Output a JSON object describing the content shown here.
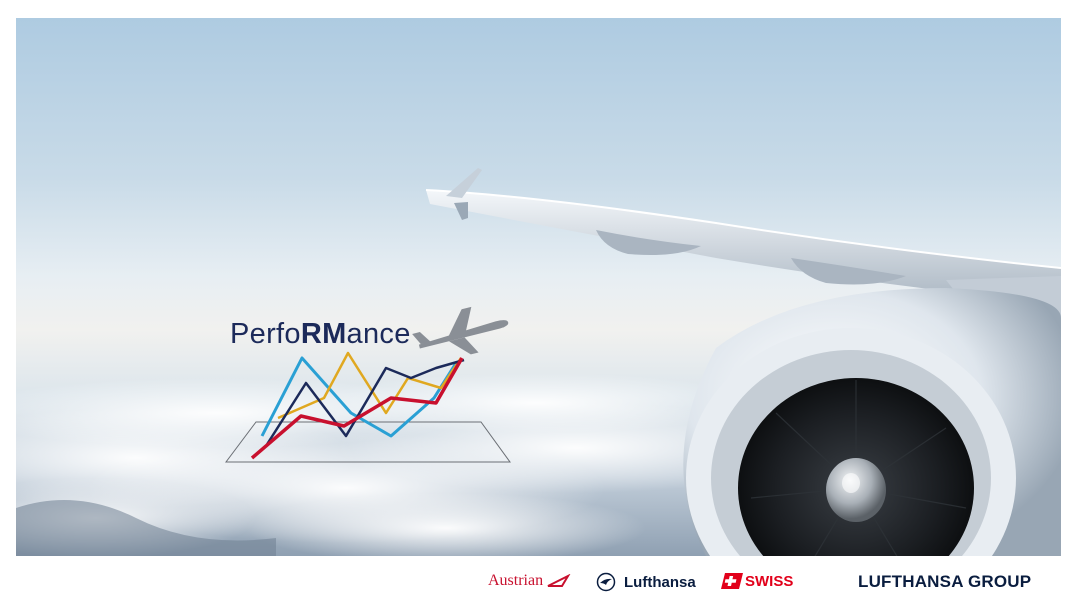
{
  "hero": {
    "logo": {
      "prefix": "Perfo",
      "highlight": "RM",
      "suffix": "ance"
    }
  },
  "footer": {
    "brands": {
      "austrian": "Austrian",
      "lufthansa": "Lufthansa",
      "swiss": "SWISS",
      "group": "LUFTHANSA GROUP"
    }
  },
  "colors": {
    "navy": "#1c2a5a",
    "line_blue": "#2aa0d4",
    "line_gold": "#e0a820",
    "line_navy": "#1c2a5a",
    "line_red": "#c8102e",
    "plane_gray": "#8a8f96"
  }
}
